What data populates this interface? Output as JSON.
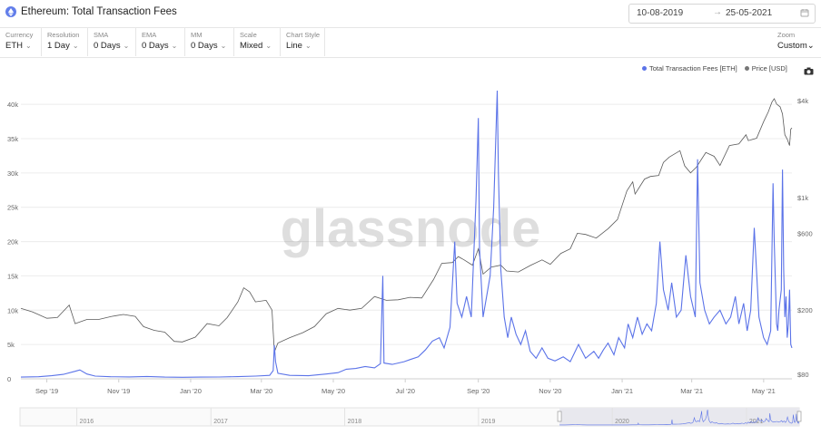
{
  "header": {
    "title": "Ethereum: Total Transaction Fees",
    "date_from": "10-08-2019",
    "date_arrow": "→",
    "date_to": "25-05-2021"
  },
  "controls": [
    {
      "label": "Currency",
      "value": "ETH"
    },
    {
      "label": "Resolution",
      "value": "1 Day"
    },
    {
      "label": "SMA",
      "value": "0 Days"
    },
    {
      "label": "EMA",
      "value": "0 Days"
    },
    {
      "label": "MM",
      "value": "0 Days"
    },
    {
      "label": "Scale",
      "value": "Mixed"
    },
    {
      "label": "Chart Style",
      "value": "Line"
    }
  ],
  "zoom": {
    "label": "Zoom",
    "value": "Custom"
  },
  "watermark": "glassnode",
  "colors": {
    "fees": "#5b73e8",
    "price": "#5a5a5a",
    "grid": "#ececec",
    "brand_icon": "#627eea"
  },
  "icons": {
    "title": "ethereum-icon",
    "calendar": "calendar-icon",
    "camera": "camera-icon",
    "chevron": "chevron-down-icon"
  },
  "chart_data": {
    "type": "line",
    "x_type": "date",
    "x_range": [
      "2019-08-10",
      "2021-05-25"
    ],
    "x_ticks": [
      {
        "date": "2019-09-01",
        "label": "Sep '19"
      },
      {
        "date": "2019-11-01",
        "label": "Nov '19"
      },
      {
        "date": "2020-01-01",
        "label": "Jan '20"
      },
      {
        "date": "2020-03-01",
        "label": "Mar '20"
      },
      {
        "date": "2020-05-01",
        "label": "May '20"
      },
      {
        "date": "2020-07-01",
        "label": "Jul '20"
      },
      {
        "date": "2020-09-01",
        "label": "Sep '20"
      },
      {
        "date": "2020-11-01",
        "label": "Nov '20"
      },
      {
        "date": "2021-01-01",
        "label": "Jan '21"
      },
      {
        "date": "2021-03-01",
        "label": "Mar '21"
      },
      {
        "date": "2021-05-01",
        "label": "May '21"
      }
    ],
    "y_left": {
      "scale": "linear",
      "range": [
        0,
        42000
      ],
      "ticks": [
        0,
        5000,
        10000,
        15000,
        20000,
        25000,
        30000,
        35000,
        40000
      ],
      "tick_labels": [
        "0",
        "5k",
        "10k",
        "15k",
        "20k",
        "25k",
        "30k",
        "35k",
        "40k"
      ]
    },
    "y_right": {
      "scale": "log",
      "range": [
        75,
        4600
      ],
      "ticks": [
        80,
        200,
        600,
        1000,
        4000
      ],
      "tick_labels": [
        "$80",
        "$200",
        "$600",
        "$1k",
        "$4k"
      ]
    },
    "grid": true,
    "legend_position": "top-right",
    "series": [
      {
        "name": "Total Transaction Fees [ETH]",
        "axis": "left",
        "color": "#5b73e8",
        "points": [
          [
            "2019-08-10",
            250
          ],
          [
            "2019-08-25",
            300
          ],
          [
            "2019-09-05",
            450
          ],
          [
            "2019-09-15",
            650
          ],
          [
            "2019-09-25",
            1100
          ],
          [
            "2019-09-29",
            1300
          ],
          [
            "2019-10-05",
            700
          ],
          [
            "2019-10-12",
            400
          ],
          [
            "2019-10-25",
            300
          ],
          [
            "2019-11-10",
            280
          ],
          [
            "2019-11-25",
            350
          ],
          [
            "2019-12-10",
            250
          ],
          [
            "2019-12-25",
            220
          ],
          [
            "2020-01-10",
            250
          ],
          [
            "2020-01-25",
            270
          ],
          [
            "2020-02-10",
            320
          ],
          [
            "2020-02-25",
            400
          ],
          [
            "2020-03-08",
            500
          ],
          [
            "2020-03-11",
            1200
          ],
          [
            "2020-03-12",
            4900
          ],
          [
            "2020-03-13",
            2500
          ],
          [
            "2020-03-15",
            800
          ],
          [
            "2020-03-25",
            500
          ],
          [
            "2020-04-10",
            450
          ],
          [
            "2020-04-25",
            700
          ],
          [
            "2020-05-05",
            900
          ],
          [
            "2020-05-12",
            1400
          ],
          [
            "2020-05-20",
            1500
          ],
          [
            "2020-05-28",
            1800
          ],
          [
            "2020-06-05",
            1600
          ],
          [
            "2020-06-10",
            2200
          ],
          [
            "2020-06-12",
            15000
          ],
          [
            "2020-06-13",
            2300
          ],
          [
            "2020-06-20",
            2100
          ],
          [
            "2020-06-30",
            2500
          ],
          [
            "2020-07-05",
            2800
          ],
          [
            "2020-07-12",
            3200
          ],
          [
            "2020-07-18",
            4200
          ],
          [
            "2020-07-24",
            5500
          ],
          [
            "2020-07-30",
            6000
          ],
          [
            "2020-08-03",
            4500
          ],
          [
            "2020-08-08",
            7500
          ],
          [
            "2020-08-12",
            20000
          ],
          [
            "2020-08-14",
            11000
          ],
          [
            "2020-08-18",
            9000
          ],
          [
            "2020-08-22",
            12000
          ],
          [
            "2020-08-26",
            9000
          ],
          [
            "2020-08-30",
            26000
          ],
          [
            "2020-09-01",
            38000
          ],
          [
            "2020-09-02",
            19000
          ],
          [
            "2020-09-05",
            9000
          ],
          [
            "2020-09-08",
            12000
          ],
          [
            "2020-09-11",
            15000
          ],
          [
            "2020-09-14",
            25000
          ],
          [
            "2020-09-17",
            42000
          ],
          [
            "2020-09-18",
            30000
          ],
          [
            "2020-09-20",
            16000
          ],
          [
            "2020-09-23",
            9000
          ],
          [
            "2020-09-26",
            6000
          ],
          [
            "2020-09-29",
            9000
          ],
          [
            "2020-10-03",
            6500
          ],
          [
            "2020-10-07",
            5000
          ],
          [
            "2020-10-11",
            7000
          ],
          [
            "2020-10-15",
            4000
          ],
          [
            "2020-10-20",
            3000
          ],
          [
            "2020-10-25",
            4500
          ],
          [
            "2020-10-30",
            3000
          ],
          [
            "2020-11-05",
            2600
          ],
          [
            "2020-11-12",
            3200
          ],
          [
            "2020-11-18",
            2500
          ],
          [
            "2020-11-25",
            5000
          ],
          [
            "2020-12-01",
            3000
          ],
          [
            "2020-12-08",
            4000
          ],
          [
            "2020-12-12",
            3000
          ],
          [
            "2020-12-16",
            4200
          ],
          [
            "2020-12-20",
            5200
          ],
          [
            "2020-12-25",
            3500
          ],
          [
            "2020-12-29",
            6000
          ],
          [
            "2021-01-03",
            4500
          ],
          [
            "2021-01-06",
            8000
          ],
          [
            "2021-01-10",
            6000
          ],
          [
            "2021-01-14",
            9000
          ],
          [
            "2021-01-18",
            6500
          ],
          [
            "2021-01-22",
            8000
          ],
          [
            "2021-01-26",
            7000
          ],
          [
            "2021-01-30",
            11000
          ],
          [
            "2021-02-02",
            20000
          ],
          [
            "2021-02-05",
            13000
          ],
          [
            "2021-02-09",
            10000
          ],
          [
            "2021-02-12",
            14000
          ],
          [
            "2021-02-16",
            9000
          ],
          [
            "2021-02-20",
            10000
          ],
          [
            "2021-02-24",
            18000
          ],
          [
            "2021-02-28",
            12000
          ],
          [
            "2021-03-04",
            9000
          ],
          [
            "2021-03-06",
            32000
          ],
          [
            "2021-03-08",
            14000
          ],
          [
            "2021-03-12",
            10000
          ],
          [
            "2021-03-16",
            8000
          ],
          [
            "2021-03-20",
            9000
          ],
          [
            "2021-03-25",
            10000
          ],
          [
            "2021-03-30",
            8000
          ],
          [
            "2021-04-03",
            9000
          ],
          [
            "2021-04-07",
            12000
          ],
          [
            "2021-04-10",
            8000
          ],
          [
            "2021-04-14",
            11000
          ],
          [
            "2021-04-17",
            7000
          ],
          [
            "2021-04-20",
            10000
          ],
          [
            "2021-04-23",
            22000
          ],
          [
            "2021-04-27",
            9000
          ],
          [
            "2021-05-01",
            6000
          ],
          [
            "2021-05-04",
            5000
          ],
          [
            "2021-05-07",
            7000
          ],
          [
            "2021-05-09",
            28500
          ],
          [
            "2021-05-10",
            20000
          ],
          [
            "2021-05-12",
            8000
          ],
          [
            "2021-05-13",
            7000
          ],
          [
            "2021-05-14",
            10000
          ],
          [
            "2021-05-16",
            13000
          ],
          [
            "2021-05-17",
            30500
          ],
          [
            "2021-05-18",
            16000
          ],
          [
            "2021-05-19",
            9000
          ],
          [
            "2021-05-20",
            12000
          ],
          [
            "2021-05-21",
            6000
          ],
          [
            "2021-05-22",
            8000
          ],
          [
            "2021-05-23",
            13000
          ],
          [
            "2021-05-24",
            5000
          ],
          [
            "2021-05-25",
            4500
          ]
        ]
      },
      {
        "name": "Price [USD]",
        "axis": "right",
        "color": "#5a5a5a",
        "points": [
          [
            "2019-08-10",
            205
          ],
          [
            "2019-08-20",
            195
          ],
          [
            "2019-09-01",
            178
          ],
          [
            "2019-09-10",
            180
          ],
          [
            "2019-09-20",
            215
          ],
          [
            "2019-09-25",
            165
          ],
          [
            "2019-10-05",
            175
          ],
          [
            "2019-10-15",
            175
          ],
          [
            "2019-10-26",
            183
          ],
          [
            "2019-11-05",
            188
          ],
          [
            "2019-11-15",
            183
          ],
          [
            "2019-11-22",
            158
          ],
          [
            "2019-12-01",
            150
          ],
          [
            "2019-12-10",
            146
          ],
          [
            "2019-12-18",
            128
          ],
          [
            "2019-12-25",
            127
          ],
          [
            "2020-01-05",
            136
          ],
          [
            "2020-01-15",
            165
          ],
          [
            "2020-01-25",
            160
          ],
          [
            "2020-02-01",
            180
          ],
          [
            "2020-02-10",
            225
          ],
          [
            "2020-02-15",
            275
          ],
          [
            "2020-02-20",
            260
          ],
          [
            "2020-02-25",
            225
          ],
          [
            "2020-03-05",
            230
          ],
          [
            "2020-03-10",
            200
          ],
          [
            "2020-03-12",
            110
          ],
          [
            "2020-03-15",
            125
          ],
          [
            "2020-03-25",
            135
          ],
          [
            "2020-04-05",
            145
          ],
          [
            "2020-04-15",
            158
          ],
          [
            "2020-04-25",
            190
          ],
          [
            "2020-05-05",
            205
          ],
          [
            "2020-05-15",
            200
          ],
          [
            "2020-05-25",
            205
          ],
          [
            "2020-06-05",
            243
          ],
          [
            "2020-06-15",
            230
          ],
          [
            "2020-06-25",
            232
          ],
          [
            "2020-07-05",
            240
          ],
          [
            "2020-07-15",
            238
          ],
          [
            "2020-07-25",
            310
          ],
          [
            "2020-08-01",
            390
          ],
          [
            "2020-08-10",
            395
          ],
          [
            "2020-08-15",
            430
          ],
          [
            "2020-08-20",
            410
          ],
          [
            "2020-08-27",
            380
          ],
          [
            "2020-09-01",
            480
          ],
          [
            "2020-09-05",
            335
          ],
          [
            "2020-09-12",
            370
          ],
          [
            "2020-09-20",
            380
          ],
          [
            "2020-09-25",
            350
          ],
          [
            "2020-10-05",
            345
          ],
          [
            "2020-10-15",
            378
          ],
          [
            "2020-10-25",
            410
          ],
          [
            "2020-11-01",
            385
          ],
          [
            "2020-11-10",
            450
          ],
          [
            "2020-11-18",
            480
          ],
          [
            "2020-11-24",
            600
          ],
          [
            "2020-12-01",
            590
          ],
          [
            "2020-12-10",
            560
          ],
          [
            "2020-12-20",
            640
          ],
          [
            "2020-12-28",
            730
          ],
          [
            "2021-01-05",
            1100
          ],
          [
            "2021-01-10",
            1250
          ],
          [
            "2021-01-12",
            1050
          ],
          [
            "2021-01-20",
            1300
          ],
          [
            "2021-01-25",
            1350
          ],
          [
            "2021-02-01",
            1370
          ],
          [
            "2021-02-05",
            1650
          ],
          [
            "2021-02-10",
            1780
          ],
          [
            "2021-02-19",
            1950
          ],
          [
            "2021-02-23",
            1570
          ],
          [
            "2021-02-28",
            1420
          ],
          [
            "2021-03-05",
            1540
          ],
          [
            "2021-03-13",
            1900
          ],
          [
            "2021-03-20",
            1800
          ],
          [
            "2021-03-25",
            1580
          ],
          [
            "2021-04-02",
            2100
          ],
          [
            "2021-04-10",
            2150
          ],
          [
            "2021-04-16",
            2450
          ],
          [
            "2021-04-18",
            2250
          ],
          [
            "2021-04-25",
            2330
          ],
          [
            "2021-05-01",
            2950
          ],
          [
            "2021-05-05",
            3400
          ],
          [
            "2021-05-08",
            3900
          ],
          [
            "2021-05-10",
            4100
          ],
          [
            "2021-05-12",
            3800
          ],
          [
            "2021-05-15",
            3650
          ],
          [
            "2021-05-17",
            3300
          ],
          [
            "2021-05-19",
            2450
          ],
          [
            "2021-05-21",
            2300
          ],
          [
            "2021-05-23",
            2100
          ],
          [
            "2021-05-24",
            2650
          ],
          [
            "2021-05-25",
            2700
          ]
        ]
      }
    ],
    "navigator": {
      "labels": [
        "2016",
        "2017",
        "2018",
        "2019",
        "2020",
        "2021"
      ],
      "selected": [
        "2019-08-10",
        "2021-05-25"
      ]
    }
  }
}
